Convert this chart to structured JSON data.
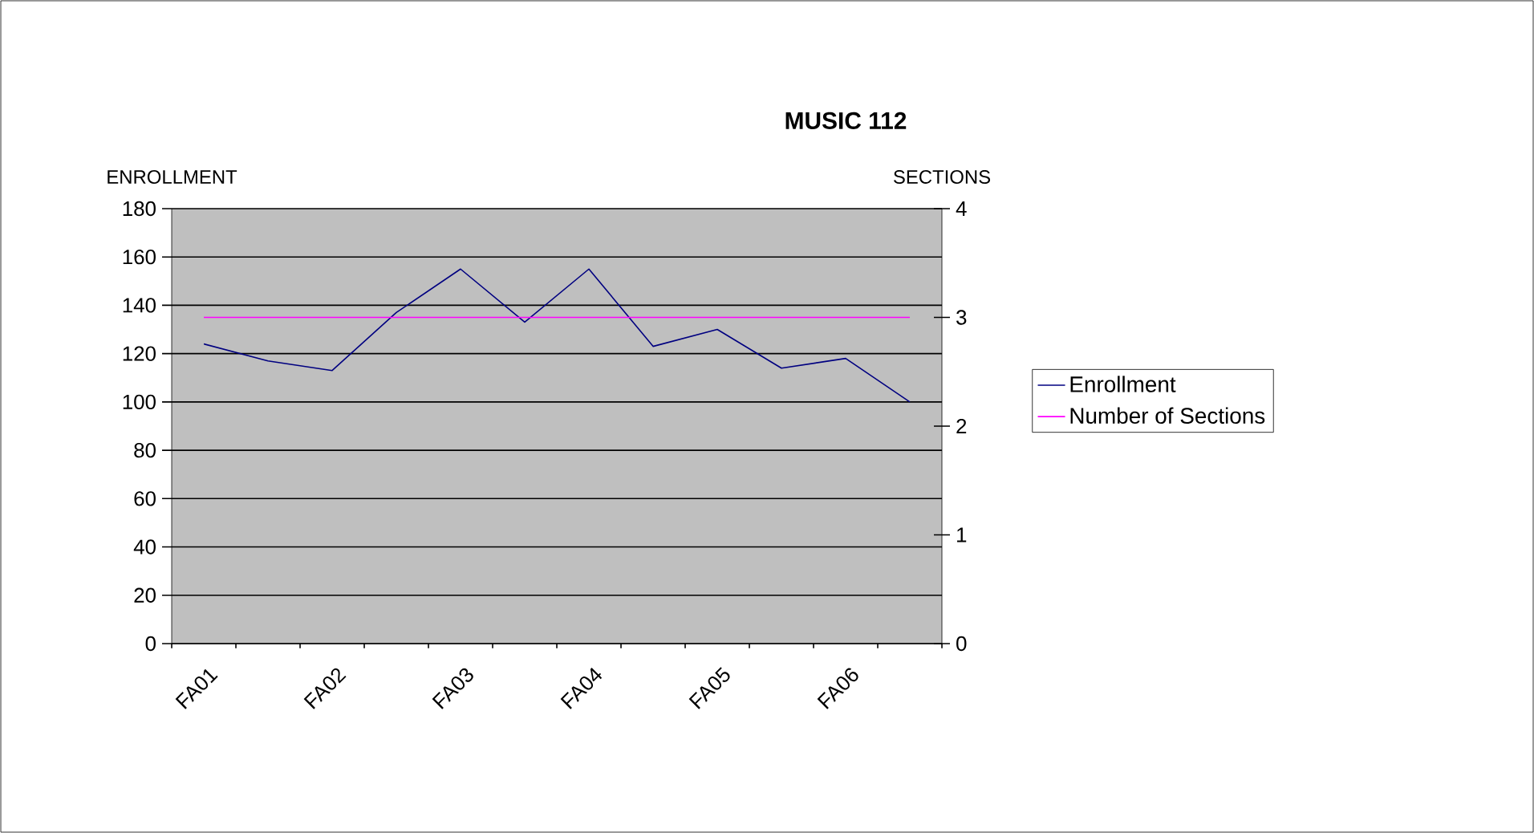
{
  "chart_data": {
    "type": "line",
    "title": "MUSIC 112",
    "ylabel": "ENROLLMENT",
    "y2label": "SECTIONS",
    "categories": [
      "FA01",
      null,
      "FA02",
      null,
      "FA03",
      null,
      "FA04",
      null,
      "FA05",
      null,
      "FA06",
      null
    ],
    "series": [
      {
        "name": "Enrollment",
        "color": "#000080",
        "values": [
          124,
          117,
          113,
          137,
          155,
          133,
          155,
          123,
          130,
          114,
          118,
          100
        ]
      },
      {
        "name": "Number of Sections",
        "color": "#ff00ff",
        "axis": "y2",
        "values": [
          3,
          3,
          3,
          3,
          3,
          3,
          3,
          3,
          3,
          3,
          3,
          3
        ]
      }
    ],
    "ylim": [
      0,
      180
    ],
    "yticks": [
      0,
      20,
      40,
      60,
      80,
      100,
      120,
      140,
      160,
      180
    ],
    "y2lim": [
      0,
      4
    ],
    "y2ticks": [
      0,
      1,
      2,
      3,
      4
    ],
    "grid": "y",
    "legend": "right",
    "marker": "none",
    "line_style": "solid"
  }
}
